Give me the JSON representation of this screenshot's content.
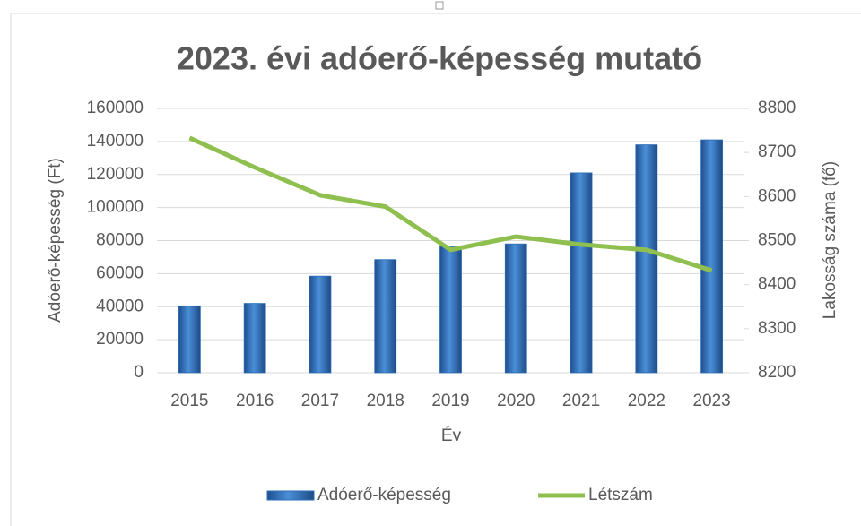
{
  "chart_data": {
    "type": "bar",
    "title": "2023. évi adóerő-képesség mutató",
    "x_label": "Év",
    "y_label": "Adóerő-képesség (Ft)",
    "y2_label": "Lakosság száma (fő)",
    "categories": [
      "2015",
      "2016",
      "2017",
      "2018",
      "2019",
      "2020",
      "2021",
      "2022",
      "2023"
    ],
    "series": [
      {
        "name": "Adóerő-képesség",
        "type": "bar",
        "color": "#2e6fb7",
        "values": [
          40500,
          42000,
          58500,
          68500,
          76500,
          78000,
          121000,
          138000,
          141000
        ]
      },
      {
        "name": "Létszám",
        "type": "line",
        "axis": "y2",
        "color": "#8fbf4f",
        "values": [
          8733,
          8666,
          8603,
          8577,
          8479,
          8509,
          8491,
          8479,
          8432
        ]
      }
    ],
    "ylim": [
      0,
      160000
    ],
    "yticks": [
      0,
      20000,
      40000,
      60000,
      80000,
      100000,
      120000,
      140000,
      160000
    ],
    "y2lim": [
      8200,
      8800
    ],
    "y2ticks": [
      8200,
      8300,
      8400,
      8500,
      8600,
      8700,
      8800
    ],
    "grid": true,
    "legend": "bottom"
  }
}
